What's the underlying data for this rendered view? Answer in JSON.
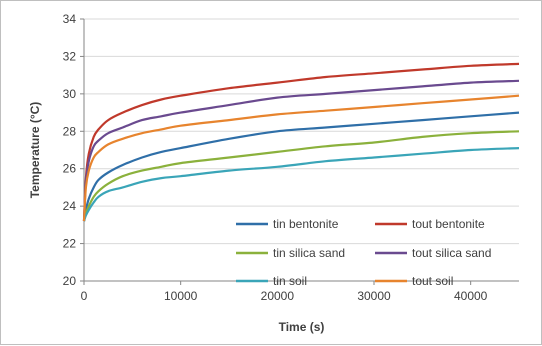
{
  "chart_data": {
    "type": "line",
    "title": "",
    "xlabel": "Time (s)",
    "ylabel": "Temperature (°C)",
    "xlim": [
      0,
      45000
    ],
    "ylim": [
      20,
      34
    ],
    "xticks": [
      0,
      10000,
      20000,
      30000,
      40000
    ],
    "yticks": [
      20,
      22,
      24,
      26,
      28,
      30,
      32,
      34
    ],
    "grid": "horizontal",
    "legend_position": "bottom-right",
    "x": [
      0,
      200,
      500,
      1000,
      1500,
      2500,
      4000,
      6000,
      8000,
      10000,
      15000,
      20000,
      25000,
      30000,
      35000,
      40000,
      45000
    ],
    "series": [
      {
        "name": "tin bentonite",
        "color": "#2f6fa8",
        "values": [
          23.2,
          23.8,
          24.4,
          25.0,
          25.4,
          25.8,
          26.2,
          26.6,
          26.9,
          27.1,
          27.6,
          28.0,
          28.2,
          28.4,
          28.6,
          28.8,
          29.0
        ]
      },
      {
        "name": "tout bentonite",
        "color": "#c0392b",
        "values": [
          23.2,
          25.5,
          26.8,
          27.7,
          28.1,
          28.6,
          29.0,
          29.4,
          29.7,
          29.9,
          30.3,
          30.6,
          30.9,
          31.1,
          31.3,
          31.5,
          31.6
        ]
      },
      {
        "name": "tin silica sand",
        "color": "#8bb13c",
        "values": [
          23.2,
          23.6,
          24.0,
          24.5,
          24.8,
          25.2,
          25.6,
          25.9,
          26.1,
          26.3,
          26.6,
          26.9,
          27.2,
          27.4,
          27.7,
          27.9,
          28.0
        ]
      },
      {
        "name": "tout silica sand",
        "color": "#6a4a8f",
        "values": [
          23.2,
          25.3,
          26.4,
          27.2,
          27.5,
          27.9,
          28.2,
          28.6,
          28.8,
          29.0,
          29.4,
          29.8,
          30.0,
          30.2,
          30.4,
          30.6,
          30.7
        ]
      },
      {
        "name": "tin soil",
        "color": "#3aa5b8",
        "values": [
          23.2,
          23.5,
          23.8,
          24.2,
          24.5,
          24.8,
          25.0,
          25.3,
          25.5,
          25.6,
          25.9,
          26.1,
          26.4,
          26.6,
          26.8,
          27.0,
          27.1
        ]
      },
      {
        "name": "tout soil",
        "color": "#e7842e",
        "values": [
          23.2,
          25.0,
          25.9,
          26.6,
          26.9,
          27.3,
          27.6,
          27.9,
          28.1,
          28.3,
          28.6,
          28.9,
          29.1,
          29.3,
          29.5,
          29.7,
          29.9
        ]
      }
    ]
  }
}
